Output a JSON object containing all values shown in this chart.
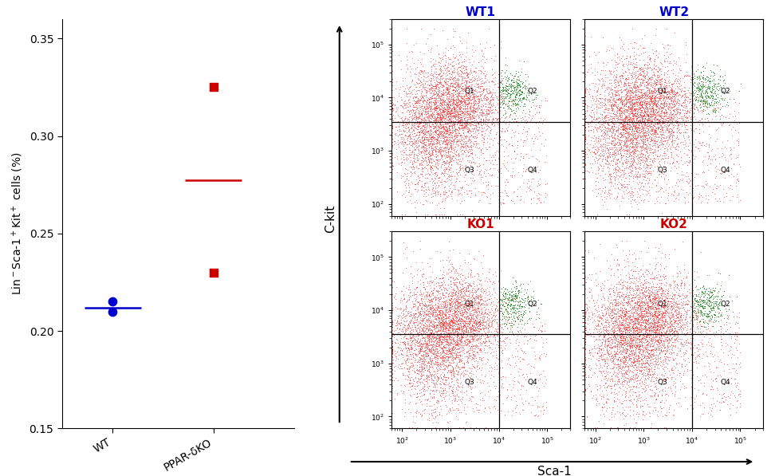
{
  "scatter": {
    "wt_values": [
      0.21,
      0.215
    ],
    "wt_mean": 0.212,
    "ko_values": [
      0.325,
      0.23
    ],
    "ko_mean": 0.2775,
    "wt_color": "#0000CC",
    "ko_color": "#CC0000",
    "xtick_labels": [
      "WT",
      "PPAR-δKO"
    ],
    "ylim": [
      0.15,
      0.36
    ],
    "yticks": [
      0.15,
      0.2,
      0.25,
      0.3,
      0.35
    ],
    "marker_size": 55
  },
  "facs": {
    "titles": [
      "WT1",
      "WT2",
      "KO1",
      "KO2"
    ],
    "title_colors": [
      "#0000CC",
      "#0000CC",
      "#CC0000",
      "#CC0000"
    ],
    "xlim": [
      60,
      300000
    ],
    "ylim": [
      60,
      300000
    ],
    "xticks": [
      100,
      1000,
      10000,
      100000
    ],
    "yticks": [
      100,
      1000,
      10000,
      100000
    ],
    "quadrant_line_x": 10000,
    "quadrant_line_y": 3500,
    "xlabel": "Sca-1",
    "ylabel": "C-kit",
    "seeds": [
      42,
      123,
      7,
      99
    ],
    "n_red": 5000,
    "n_green": 350
  }
}
